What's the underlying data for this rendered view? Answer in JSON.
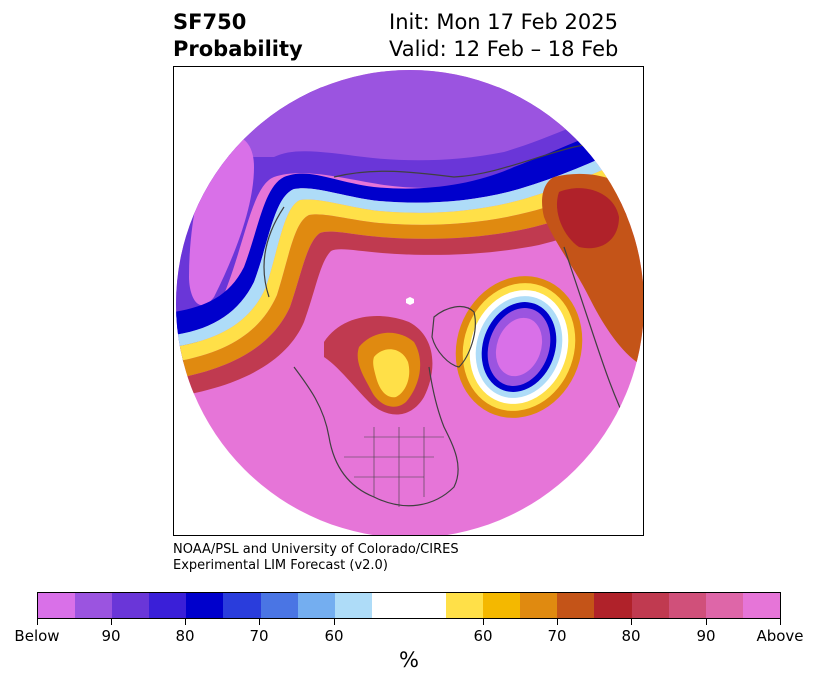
{
  "title": {
    "left_line1": "SF750",
    "left_line2": "Probability",
    "right_line1": "Init: Mon 17 Feb 2025",
    "right_line2": "Valid: 12 Feb – 18 Feb"
  },
  "credit": {
    "line1": "NOAA/PSL and University of Colorado/CIRES",
    "line2": "Experimental LIM Forecast (v2.0)"
  },
  "colorbar": {
    "unit": "%",
    "tick_labels": [
      "Below",
      "90",
      "80",
      "70",
      "60",
      "60",
      "70",
      "80",
      "90",
      "Above"
    ],
    "colors": [
      "#d970e8",
      "#9b54e0",
      "#6a36d8",
      "#3a1fd8",
      "#0000cc",
      "#2a3ddc",
      "#4a75e4",
      "#74aef0",
      "#aedcf8",
      "#ffffff",
      "#ffe048",
      "#f4b800",
      "#e08a10",
      "#c45418",
      "#b0222a",
      "#c03a50",
      "#d0507a",
      "#de66a8",
      "#e675d8"
    ]
  },
  "map": {
    "projection": "north-polar-stereographic",
    "field_colors": {
      "background": "#e675d8",
      "below": "#d970e8",
      "strong_blue": "#0000cc",
      "mid_blue": "#4a75e4",
      "light_blue": "#aedcf8",
      "yellow": "#ffe048",
      "orange": "#e08a10",
      "dark_red": "#b0222a",
      "coast": "#404040"
    }
  }
}
